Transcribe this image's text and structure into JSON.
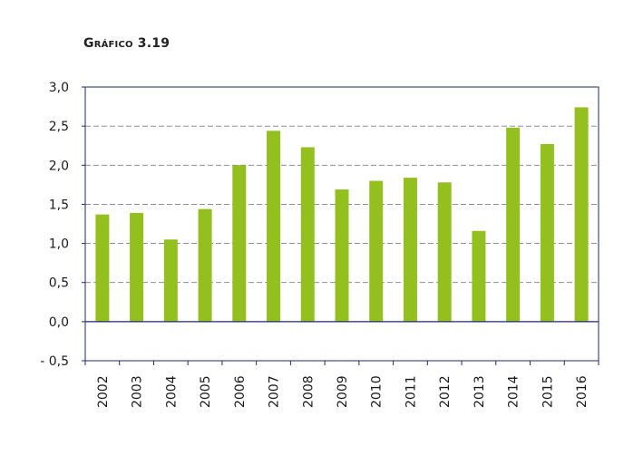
{
  "title": "Gráfico 3.19",
  "chart_data": {
    "type": "bar",
    "title": "Gráfico 3.19",
    "xlabel": "",
    "ylabel": "",
    "categories": [
      "2002",
      "2003",
      "2004",
      "2005",
      "2006",
      "2007",
      "2008",
      "2009",
      "2010",
      "2011",
      "2012",
      "2013",
      "2014",
      "2015",
      "2016"
    ],
    "values": [
      1.37,
      1.39,
      1.05,
      1.44,
      2.0,
      2.44,
      2.23,
      1.69,
      1.8,
      1.84,
      1.78,
      1.16,
      2.48,
      2.27,
      2.74
    ],
    "ylim": [
      -0.5,
      3.0
    ],
    "y_ticks": [
      3.0,
      2.5,
      2.0,
      1.5,
      1.0,
      0.5,
      0.0,
      -0.5
    ],
    "y_tick_labels": [
      "3,0",
      "2,5",
      "2,0",
      "1,5",
      "1,0",
      "0,5",
      "0,0",
      "- 0,5"
    ],
    "grid": true,
    "legend": "none",
    "bar_color": "#93c01f",
    "axis_color": "#1f2a6b",
    "grid_color": "#7a7f99"
  }
}
